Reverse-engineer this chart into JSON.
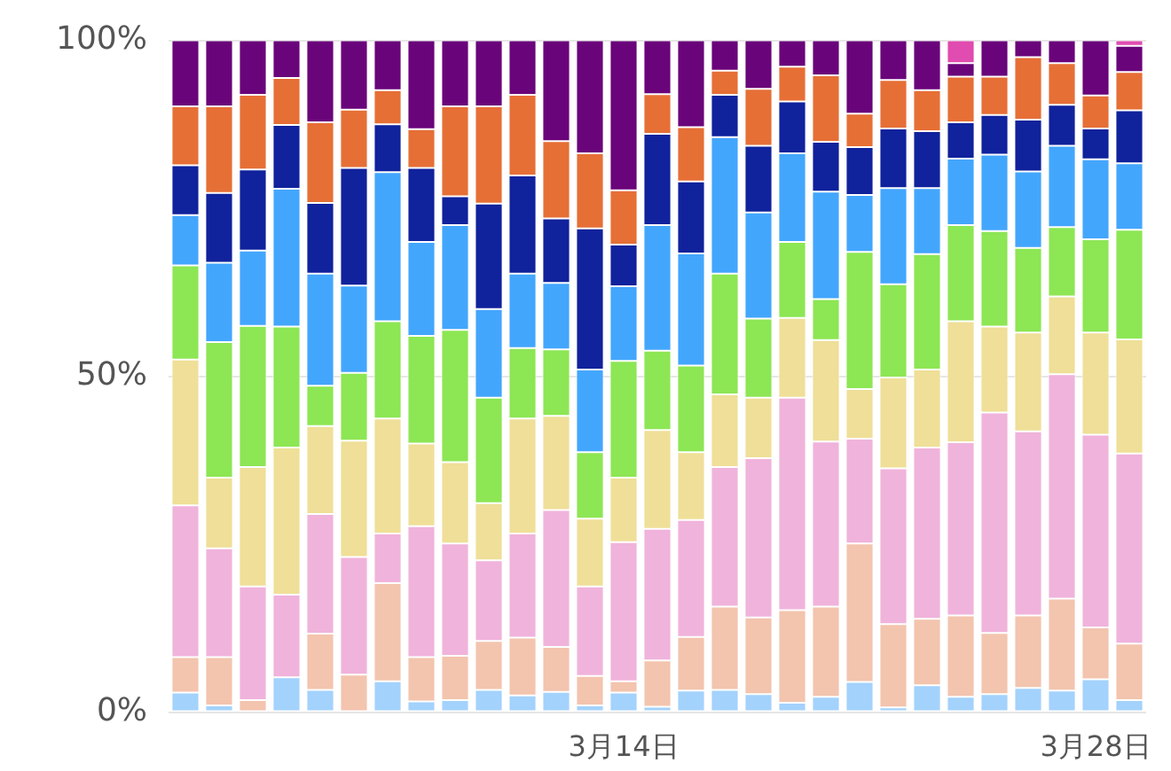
{
  "chart_data": {
    "type": "bar",
    "stacked": true,
    "categories": [
      null,
      null,
      null,
      null,
      null,
      null,
      null,
      null,
      null,
      null,
      null,
      null,
      null,
      "3月14日",
      null,
      null,
      null,
      null,
      null,
      null,
      null,
      null,
      null,
      null,
      null,
      null,
      null,
      "3月28日",
      null
    ],
    "series": [
      {
        "color": "#a3d2fc",
        "values": [
          2.9,
          1,
          0,
          5.2,
          3.3,
          0,
          4.6,
          1.6,
          1.8,
          3.3,
          2.5,
          3,
          1,
          2.9,
          0.8,
          3.2,
          3.3,
          2.7,
          1.4,
          2.3,
          4.5,
          0.7,
          4,
          2.3,
          2.7,
          3.6,
          3.2,
          4.9,
          1.8
        ]
      },
      {
        "color": "#f3c4ae",
        "values": [
          5.3,
          7.2,
          1.8,
          0,
          8.4,
          5.6,
          14.6,
          6.6,
          6.6,
          7.3,
          8.6,
          6.7,
          4.4,
          1.7,
          6.9,
          8,
          12.4,
          11.4,
          13.8,
          13.4,
          20.6,
          12.4,
          9.9,
          12.1,
          9.1,
          10.8,
          13.7,
          7.7,
          8.4
        ]
      },
      {
        "color": "#f0b3db",
        "values": [
          22.6,
          16.2,
          16.9,
          12.3,
          17.8,
          17.5,
          7.4,
          19.5,
          16.7,
          12,
          15.5,
          20.4,
          13.3,
          20.7,
          19.6,
          17.4,
          20.8,
          23.7,
          31.6,
          24.6,
          15.6,
          23.2,
          25.5,
          25.8,
          32.8,
          27.4,
          33.4,
          28.7,
          28.3
        ]
      },
      {
        "color": "#efdf98",
        "values": [
          21.7,
          10.5,
          17.8,
          21.9,
          13.1,
          17.3,
          17.1,
          12.3,
          12.1,
          8.5,
          17.1,
          14,
          10.1,
          9.6,
          14.7,
          10.1,
          10.8,
          9,
          11.9,
          15.1,
          7.4,
          13.5,
          11.6,
          18,
          12.8,
          14.7,
          11.6,
          15.2,
          17
        ]
      },
      {
        "color": "#8de654",
        "values": [
          14,
          20.2,
          21,
          18,
          6,
          10.1,
          14.5,
          16,
          19.7,
          15.7,
          10.5,
          9.9,
          9.9,
          17.4,
          11.8,
          12.9,
          18,
          11.8,
          11.3,
          6.1,
          20.4,
          13.9,
          17.2,
          14.3,
          14.2,
          12.6,
          10.3,
          13.9,
          16.3
        ]
      },
      {
        "color": "#43a6fd",
        "values": [
          7.5,
          11.8,
          11.2,
          20.5,
          16.7,
          13,
          22.2,
          14,
          15.6,
          13.2,
          11.1,
          9.9,
          12.3,
          11.1,
          18.7,
          16.7,
          20.3,
          15.8,
          13.2,
          16,
          8.5,
          14.3,
          9.8,
          9.9,
          11.4,
          11.4,
          12.1,
          11.9,
          9.9
        ]
      },
      {
        "color": "#10229c",
        "values": [
          7.4,
          10.4,
          12.1,
          9.5,
          10.5,
          17.5,
          7.1,
          11,
          4.3,
          15.7,
          14.6,
          9.6,
          21,
          6.2,
          13.6,
          10.7,
          6.3,
          9.9,
          7.7,
          7.4,
          7.1,
          8.9,
          8.5,
          5.4,
          5.9,
          7.7,
          6.1,
          4.6,
          7.9
        ]
      },
      {
        "color": "#e66f36",
        "values": [
          8.8,
          12.9,
          11.1,
          7,
          12,
          8.7,
          5.1,
          5.8,
          13.4,
          14.5,
          12,
          11.5,
          11.2,
          8.1,
          5.9,
          8.1,
          3.6,
          8.5,
          5.2,
          9.9,
          5,
          7.2,
          6.1,
          6.8,
          5.7,
          9.3,
          6.2,
          4.9,
          5.7
        ]
      },
      {
        "color": "#6a047a",
        "values": [
          9.8,
          9.8,
          8.1,
          5.6,
          12.2,
          10.3,
          7.4,
          13.2,
          9.8,
          9.8,
          8.1,
          15,
          16.8,
          22.3,
          8,
          12.9,
          4.5,
          7.2,
          3.9,
          5.2,
          10.9,
          5.9,
          7.4,
          2,
          5.4,
          2.5,
          3.4,
          8.2,
          3.9
        ]
      },
      {
        "color": "#e04cb0",
        "values": [
          0,
          0,
          0,
          0,
          0,
          0,
          0,
          0,
          0,
          0,
          0,
          0,
          0,
          0,
          0,
          0,
          0,
          0,
          0,
          0,
          0,
          0,
          0,
          3.4,
          0,
          0,
          0,
          0,
          0.8
        ]
      }
    ],
    "ylim": [
      0,
      100
    ],
    "yticks": [
      {
        "value": 0,
        "label": "0%"
      },
      {
        "value": 50,
        "label": "50%"
      },
      {
        "value": 100,
        "label": "100%"
      }
    ],
    "grid": "y",
    "legend": false
  }
}
